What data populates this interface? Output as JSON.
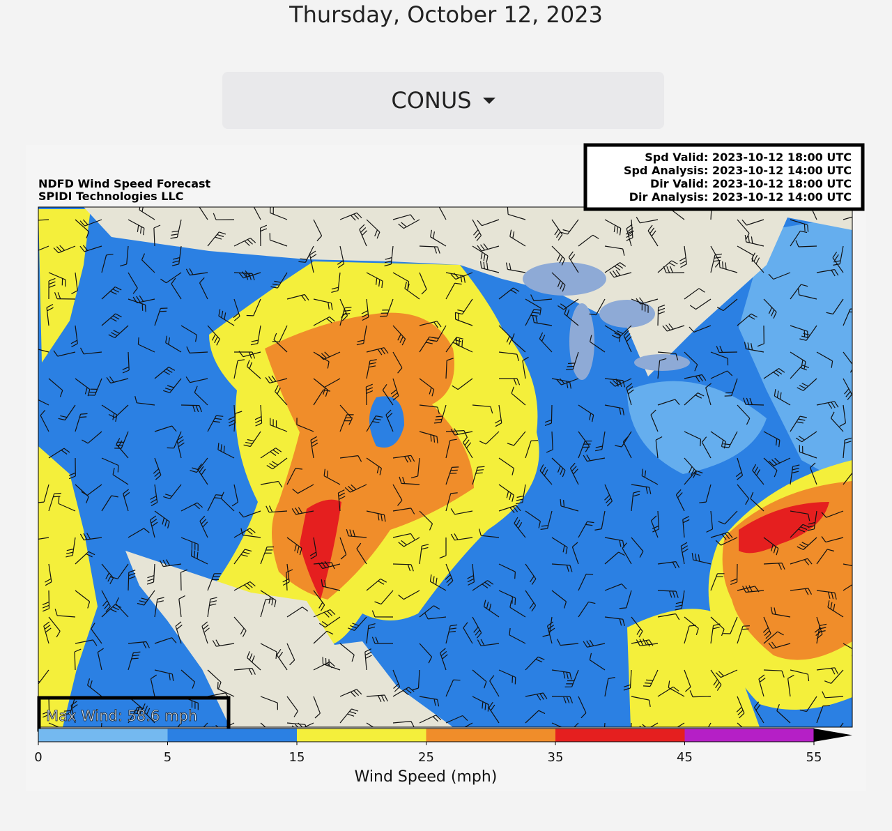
{
  "header": {
    "date": "Thursday, October 12, 2023"
  },
  "region_selector": {
    "label": "CONUS"
  },
  "map": {
    "title_lines": [
      "NDFD Wind Speed Forecast",
      "SPIDI Technologies LLC"
    ],
    "valid_lines": [
      "Spd Valid: 2023-10-12 18:00 UTC",
      "Spd Analysis: 2023-10-12 14:00 UTC",
      "Dir Valid: 2023-10-12 18:00 UTC",
      "Dir Analysis: 2023-10-12 14:00 UTC"
    ],
    "max_wind": "Max Wind: 58.6 mph"
  },
  "colorbar": {
    "bounds": [
      0,
      5,
      15,
      25,
      35,
      45,
      55
    ],
    "colors": [
      "#74b9f0",
      "#2b80e3",
      "#f4ef3b",
      "#f08d2a",
      "#e51f1f",
      "#b51fc6"
    ],
    "label": "Wind Speed (mph)"
  }
}
